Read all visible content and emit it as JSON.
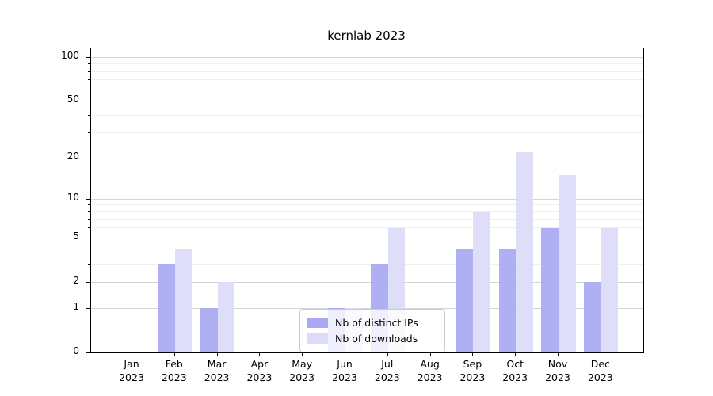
{
  "chart_data": {
    "type": "bar",
    "title": "kernlab 2023",
    "categories": [
      "Jan 2023",
      "Feb 2023",
      "Mar 2023",
      "Apr 2023",
      "May 2023",
      "Jun 2023",
      "Jul 2023",
      "Aug 2023",
      "Sep 2023",
      "Oct 2023",
      "Nov 2023",
      "Dec 2023"
    ],
    "series": [
      {
        "name": "Nb of distinct IPs",
        "color": "#a9a9f3",
        "values": [
          0,
          3,
          1,
          0,
          0,
          1,
          3,
          0,
          4,
          4,
          6,
          2
        ]
      },
      {
        "name": "Nb of downloads",
        "color": "#dcdcf9",
        "values": [
          0,
          4,
          2,
          0,
          0,
          1,
          6,
          0,
          8,
          22,
          15,
          6
        ]
      }
    ],
    "xlabel": "",
    "ylabel": "",
    "yscale": "log1p",
    "ylim": [
      0,
      115
    ],
    "yticks": [
      0,
      1,
      2,
      5,
      10,
      20,
      50,
      100
    ],
    "yticks_minor": [
      3,
      4,
      6,
      7,
      8,
      9,
      30,
      40,
      60,
      70,
      80,
      90
    ],
    "grid": true,
    "legend_position": "lower center"
  }
}
